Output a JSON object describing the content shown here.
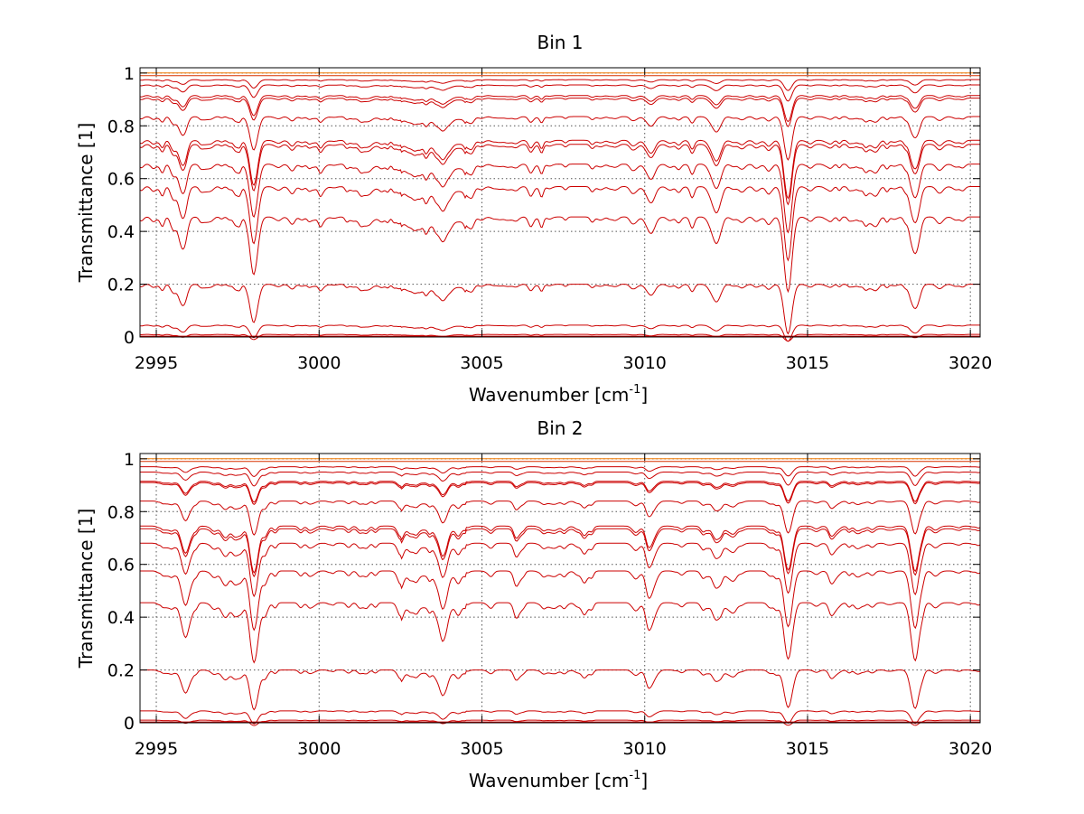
{
  "chart_data": [
    {
      "type": "line",
      "title": "Bin 1",
      "xlabel": "Wavenumber [cm",
      "xlabel_sup": "-1",
      "xlabel_end": "]",
      "ylabel": "Transmittance [1]",
      "xlim": [
        2994.5,
        3020.3
      ],
      "ylim": [
        0,
        1.02
      ],
      "xticks": [
        2995,
        3000,
        3005,
        3010,
        3015,
        3020
      ],
      "xtick_labels": [
        "2995",
        "3000",
        "3005",
        "3010",
        "3015",
        "3020"
      ],
      "yticks": [
        0,
        0.2,
        0.4,
        0.6,
        0.8,
        1
      ],
      "ytick_labels": [
        "0",
        "0.2",
        "0.4",
        "0.6",
        "0.8",
        "1"
      ],
      "grid": true,
      "line_color": "#cc0000",
      "baseline_levels": [
        1.0,
        0.99,
        0.975,
        0.955,
        0.915,
        0.905,
        0.835,
        0.745,
        0.73,
        0.655,
        0.57,
        0.455,
        0.2,
        0.045,
        0.01,
        0.003
      ],
      "absorption_lines": [
        {
          "x": 2995.8,
          "depth": 0.12
        },
        {
          "x": 2998.0,
          "depth": 0.22
        },
        {
          "x": 3003.8,
          "depth": 0.08
        },
        {
          "x": 3010.2,
          "depth": 0.06
        },
        {
          "x": 3012.2,
          "depth": 0.1
        },
        {
          "x": 3014.4,
          "depth": 0.3
        },
        {
          "x": 3018.3,
          "depth": 0.14
        }
      ]
    },
    {
      "type": "line",
      "title": "Bin 2",
      "xlabel": "Wavenumber [cm",
      "xlabel_sup": "-1",
      "xlabel_end": "]",
      "ylabel": "Transmittance [1]",
      "xlim": [
        2994.5,
        3020.3
      ],
      "ylim": [
        0,
        1.02
      ],
      "xticks": [
        2995,
        3000,
        3005,
        3010,
        3015,
        3020
      ],
      "xtick_labels": [
        "2995",
        "3000",
        "3005",
        "3010",
        "3015",
        "3020"
      ],
      "yticks": [
        0,
        0.2,
        0.4,
        0.6,
        0.8,
        1
      ],
      "ytick_labels": [
        "0",
        "0.2",
        "0.4",
        "0.6",
        "0.8",
        "1"
      ],
      "grid": true,
      "line_color": "#cc0000",
      "baseline_levels": [
        1.0,
        0.99,
        0.97,
        0.95,
        0.915,
        0.91,
        0.84,
        0.745,
        0.735,
        0.68,
        0.575,
        0.455,
        0.2,
        0.045,
        0.01,
        0.003
      ],
      "absorption_lines": [
        {
          "x": 2995.9,
          "depth": 0.14
        },
        {
          "x": 2997.1,
          "depth": 0.05
        },
        {
          "x": 2998.0,
          "depth": 0.24
        },
        {
          "x": 3003.8,
          "depth": 0.1
        },
        {
          "x": 3010.2,
          "depth": 0.05
        },
        {
          "x": 3012.2,
          "depth": 0.07
        },
        {
          "x": 3014.4,
          "depth": 0.22
        },
        {
          "x": 3018.3,
          "depth": 0.2
        }
      ]
    }
  ]
}
